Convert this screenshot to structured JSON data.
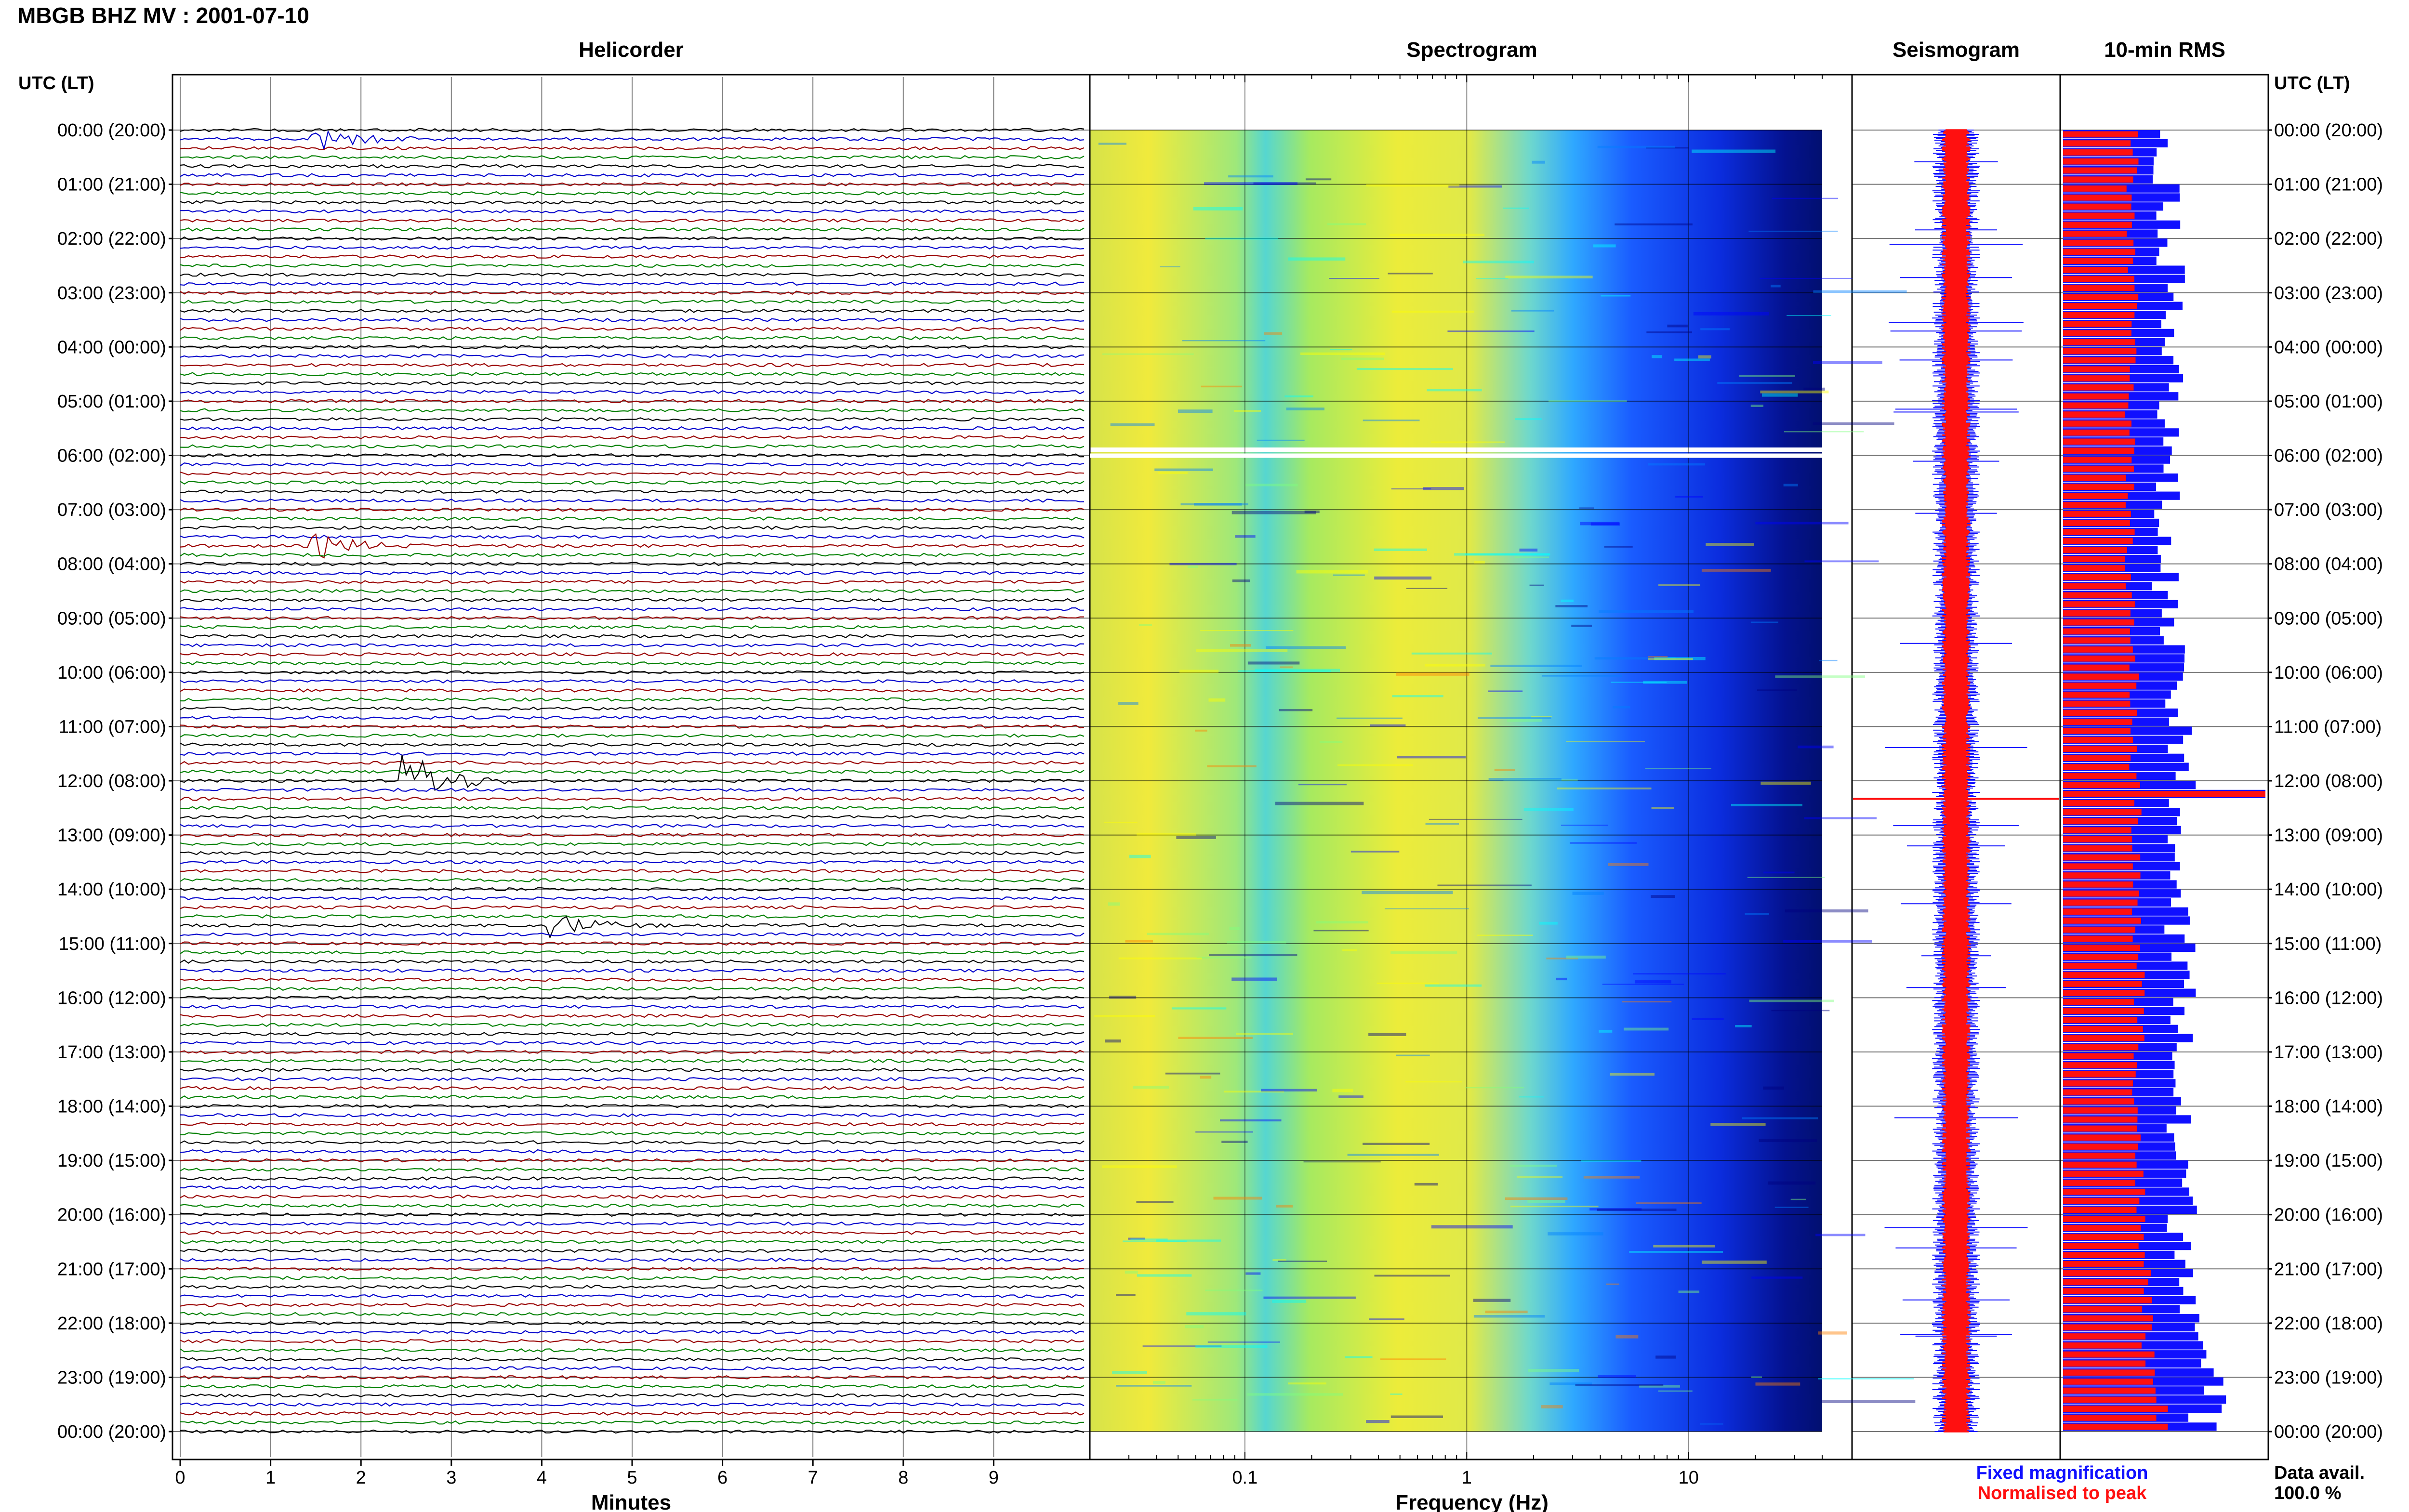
{
  "figure_title": "MBGB BHZ MV : 2001-07-10",
  "left_axis_title": "UTC (LT)",
  "right_axis_title": "UTC (LT)",
  "legend": {
    "fixed": "Fixed magnification",
    "normalised": "Normalised to peak",
    "fixed_color": "#1010ff",
    "normalised_color": "#ff1010"
  },
  "data_availability": {
    "label": "Data avail.",
    "value": "100.0 %"
  },
  "chart_data": [
    {
      "type": "line",
      "title": "Helicorder",
      "xlabel": "Minutes",
      "xlim": [
        0,
        10
      ],
      "x_ticks": [
        "0",
        "1",
        "2",
        "3",
        "4",
        "5",
        "6",
        "7",
        "8",
        "9"
      ],
      "trace_colors": [
        "#000000",
        "#0000cc",
        "#990000",
        "#008000"
      ],
      "row_labels": [
        "00:00 (20:00)",
        "01:00 (21:00)",
        "02:00 (22:00)",
        "03:00 (23:00)",
        "04:00 (00:00)",
        "05:00 (01:00)",
        "06:00 (02:00)",
        "07:00 (03:00)",
        "08:00 (04:00)",
        "09:00 (05:00)",
        "10:00 (06:00)",
        "11:00 (07:00)",
        "12:00 (08:00)",
        "13:00 (09:00)",
        "14:00 (10:00)",
        "15:00 (11:00)",
        "16:00 (12:00)",
        "17:00 (13:00)",
        "18:00 (14:00)",
        "19:00 (15:00)",
        "20:00 (16:00)",
        "21:00 (17:00)",
        "22:00 (18:00)",
        "23:00 (19:00)",
        "00:00 (20:00)"
      ],
      "events": [
        {
          "time": "12:00",
          "minute": 2.6,
          "amplitude": "large"
        },
        {
          "time": "07:40",
          "minute": 1.6,
          "amplitude": "medium"
        },
        {
          "time": "14:40",
          "minute": 4.2,
          "amplitude": "medium"
        },
        {
          "time": "00:10",
          "minute": 1.6,
          "amplitude": "medium"
        }
      ]
    },
    {
      "type": "heatmap",
      "title": "Spectrogram",
      "xlabel": "Frequency (Hz)",
      "x_scale": "log",
      "xlim": [
        0.02,
        40
      ],
      "x_ticks": [
        "0.1",
        "1",
        "10"
      ],
      "colormap": [
        "#00007f",
        "#0000ff",
        "#007fff",
        "#00ffff",
        "#7fff7f",
        "#ffff00",
        "#ff7f00"
      ],
      "note_gap_time": "06:00"
    },
    {
      "type": "line",
      "title": "Seismogram",
      "series": [
        {
          "name": "Fixed magnification",
          "color": "#1010ff"
        },
        {
          "name": "Normalised to peak",
          "color": "#ff1010"
        }
      ],
      "spike_time": "12:20"
    },
    {
      "type": "bar",
      "title": "10-min RMS",
      "orientation": "horizontal",
      "n_bars": 144,
      "series": [
        {
          "name": "Fixed magnification",
          "color": "#1010ff"
        },
        {
          "name": "Normalised to peak",
          "color": "#ff1010"
        }
      ],
      "fixed_hourly_level": [
        0.5,
        0.52,
        0.52,
        0.55,
        0.55,
        0.5,
        0.5,
        0.48,
        0.5,
        0.52,
        0.55,
        0.55,
        0.58,
        0.55,
        0.55,
        0.58,
        0.58,
        0.55,
        0.55,
        0.58,
        0.58,
        0.65,
        0.65,
        0.7
      ],
      "normalised_hourly_level": [
        0.35,
        0.34,
        0.34,
        0.35,
        0.35,
        0.33,
        0.33,
        0.33,
        0.33,
        0.34,
        0.35,
        0.35,
        0.36,
        0.36,
        0.36,
        0.38,
        0.38,
        0.37,
        0.37,
        0.38,
        0.38,
        0.42,
        0.42,
        0.48
      ],
      "peak_time": "12:10"
    }
  ]
}
